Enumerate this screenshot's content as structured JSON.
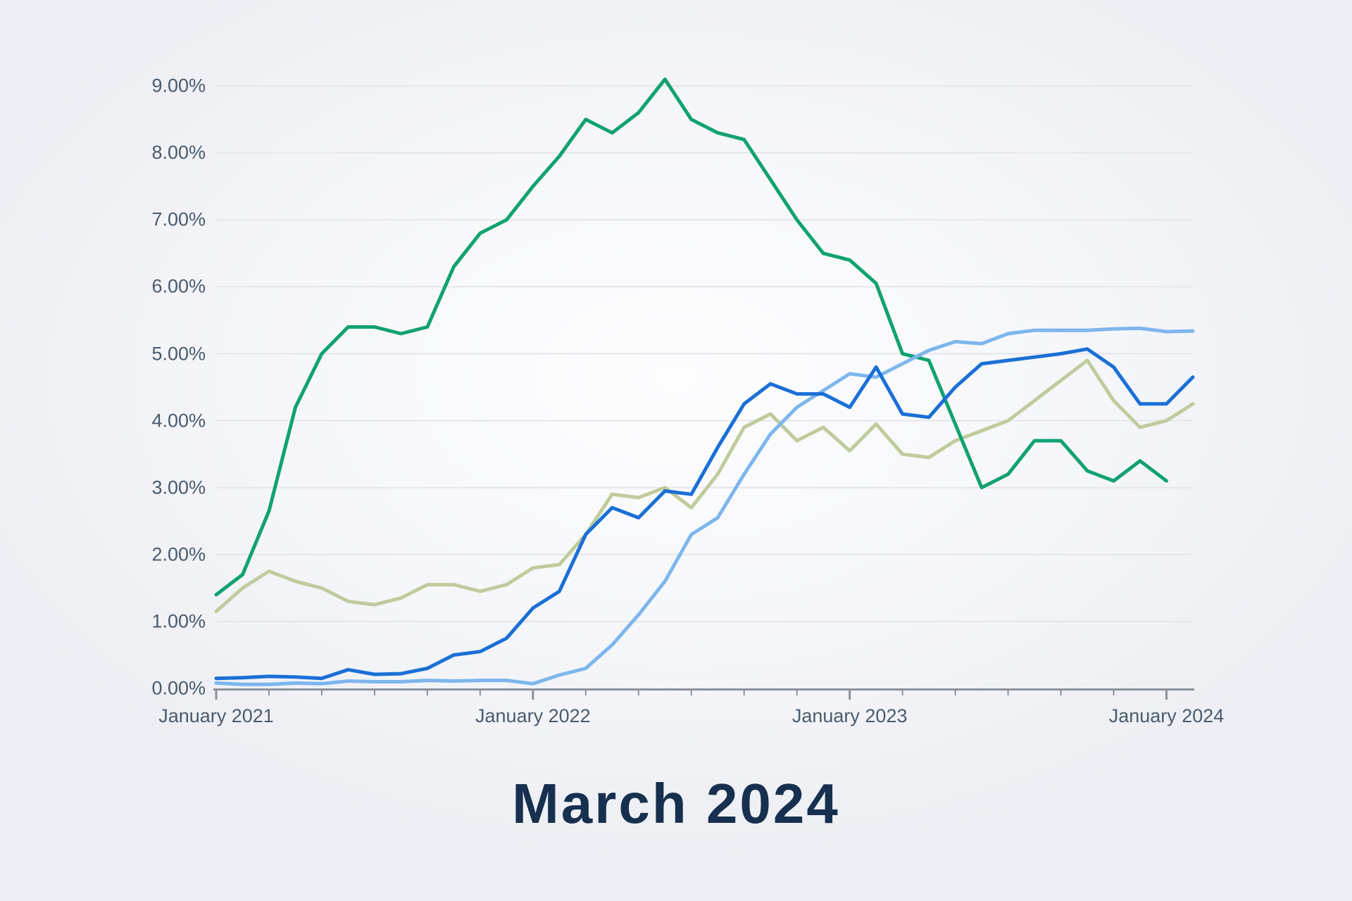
{
  "chart_data": {
    "type": "line",
    "title": "March 2024",
    "legend": "none",
    "grid": "horizontal",
    "y_axis": {
      "min": 0,
      "max": 9,
      "tick_step": 1,
      "tick_labels": [
        "0.00%",
        "1.00%",
        "2.00%",
        "3.00%",
        "4.00%",
        "5.00%",
        "6.00%",
        "7.00%",
        "8.00%",
        "9.00%"
      ]
    },
    "x_axis": {
      "minor_tick_every_months": 2,
      "major_ticks": [
        {
          "label": "January 2021",
          "month_index": 0
        },
        {
          "label": "January 2022",
          "month_index": 12
        },
        {
          "label": "January 2023",
          "month_index": 24
        },
        {
          "label": "January 2024",
          "month_index": 36
        }
      ]
    },
    "months": [
      "Jan 2021",
      "Feb 2021",
      "Mar 2021",
      "Apr 2021",
      "May 2021",
      "Jun 2021",
      "Jul 2021",
      "Aug 2021",
      "Sep 2021",
      "Oct 2021",
      "Nov 2021",
      "Dec 2021",
      "Jan 2022",
      "Feb 2022",
      "Mar 2022",
      "Apr 2022",
      "May 2022",
      "Jun 2022",
      "Jul 2022",
      "Aug 2022",
      "Sep 2022",
      "Oct 2022",
      "Nov 2022",
      "Dec 2022",
      "Jan 2023",
      "Feb 2023",
      "Mar 2023",
      "Apr 2023",
      "May 2023",
      "Jun 2023",
      "Jul 2023",
      "Aug 2023",
      "Sep 2023",
      "Oct 2023",
      "Nov 2023",
      "Dec 2023",
      "Jan 2024",
      "Feb 2024"
    ],
    "series": [
      {
        "name": "sage",
        "color": "#c0cb9d",
        "values": [
          1.15,
          1.5,
          1.75,
          1.6,
          1.5,
          1.3,
          1.25,
          1.35,
          1.55,
          1.55,
          1.45,
          1.55,
          1.8,
          1.85,
          2.3,
          2.9,
          2.85,
          3.0,
          2.7,
          3.2,
          3.9,
          4.1,
          3.7,
          3.9,
          3.55,
          3.95,
          3.5,
          3.45,
          3.7,
          3.85,
          4.0,
          4.3,
          4.6,
          4.9,
          4.3,
          3.9,
          4.0,
          4.25
        ]
      },
      {
        "name": "green",
        "color": "#10a270",
        "values": [
          1.4,
          1.7,
          2.65,
          4.2,
          5.0,
          5.4,
          5.4,
          5.3,
          5.4,
          6.3,
          6.8,
          7.0,
          7.5,
          7.95,
          8.5,
          8.3,
          8.6,
          9.1,
          8.5,
          8.3,
          8.2,
          7.6,
          7.0,
          6.5,
          6.4,
          6.05,
          5.0,
          4.9,
          3.95,
          3.0,
          3.2,
          3.7,
          3.7,
          3.25,
          3.1,
          3.4,
          3.1
        ]
      },
      {
        "name": "light-blue",
        "color": "#7db6ec",
        "values": [
          0.08,
          0.06,
          0.06,
          0.08,
          0.07,
          0.11,
          0.1,
          0.1,
          0.12,
          0.11,
          0.12,
          0.12,
          0.07,
          0.2,
          0.3,
          0.65,
          1.1,
          1.6,
          2.3,
          2.55,
          3.2,
          3.8,
          4.2,
          4.45,
          4.7,
          4.65,
          4.85,
          5.05,
          5.18,
          5.15,
          5.3,
          5.35,
          5.35,
          5.35,
          5.37,
          5.38,
          5.33,
          5.34
        ]
      },
      {
        "name": "blue",
        "color": "#1a6fd6",
        "values": [
          0.15,
          0.16,
          0.18,
          0.17,
          0.15,
          0.28,
          0.21,
          0.22,
          0.3,
          0.5,
          0.55,
          0.75,
          1.2,
          1.45,
          2.3,
          2.7,
          2.55,
          2.95,
          2.9,
          3.6,
          4.25,
          4.55,
          4.4,
          4.4,
          4.2,
          4.8,
          4.1,
          4.05,
          4.5,
          4.85,
          4.9,
          4.95,
          5.0,
          5.07,
          4.8,
          4.25,
          4.25,
          4.65
        ]
      }
    ],
    "colors": {
      "background": "#f4f5f8",
      "grid": "#e4e6ea",
      "axis": "#8a929b",
      "tick_label": "#4a5b6c",
      "title": "#17304f"
    }
  }
}
